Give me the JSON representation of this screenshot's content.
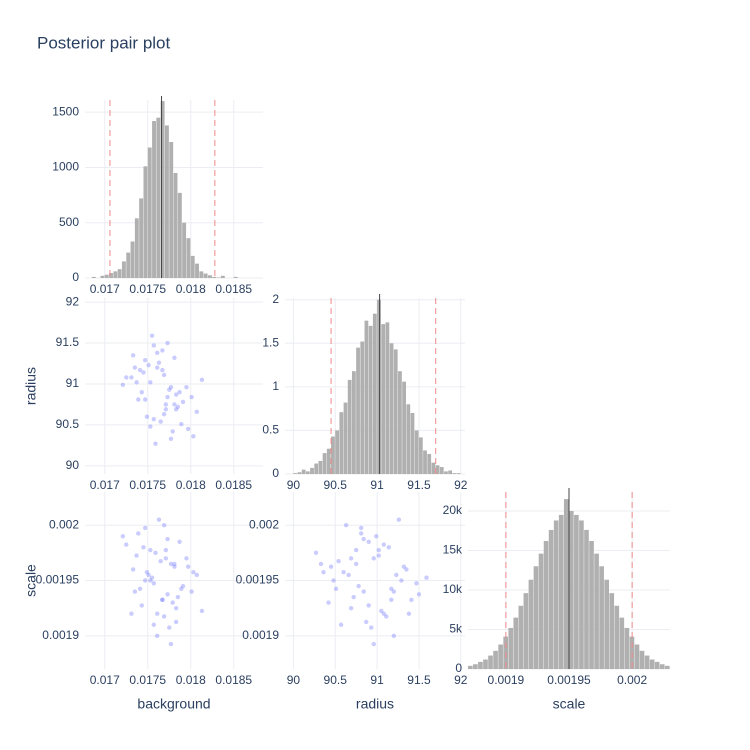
{
  "chart_data": {
    "type": "pair",
    "title": "Posterior pair plot",
    "hist_color": "#b0b0b0",
    "median_color": "#444444",
    "quantile_color": "#ef8a8a",
    "point_color": "#636efa",
    "grid": true,
    "variables": [
      {
        "name": "background",
        "xlim": [
          0.01677,
          0.01884
        ],
        "xticks": [
          0.017,
          0.0175,
          0.018,
          0.0185
        ],
        "hist_ylim": [
          0,
          1610
        ],
        "hist_yticks": [
          0,
          500,
          1000,
          1500
        ],
        "bins": [
          0.0168,
          0.01685,
          0.0169,
          0.01695,
          0.017,
          0.01705,
          0.0171,
          0.01715,
          0.0172,
          0.01725,
          0.0173,
          0.01735,
          0.0174,
          0.01745,
          0.0175,
          0.01755,
          0.0176,
          0.01765,
          0.0177,
          0.01775,
          0.0178,
          0.01785,
          0.0179,
          0.01795,
          0.018,
          0.01805,
          0.0181,
          0.01815,
          0.0182,
          0.01825,
          0.0183,
          0.01835,
          0.0184,
          0.01845,
          0.0185,
          0.01855,
          0.0186,
          0.01865,
          0.0187,
          0.01875,
          0.0188
        ],
        "counts": [
          0,
          10,
          0,
          20,
          30,
          45,
          60,
          80,
          150,
          230,
          330,
          540,
          720,
          1010,
          1180,
          1420,
          1450,
          1600,
          1380,
          1230,
          950,
          770,
          500,
          360,
          200,
          130,
          60,
          40,
          25,
          10,
          5,
          20,
          0,
          0,
          10,
          0,
          0,
          0,
          0,
          0
        ],
        "median": 0.01766,
        "quantiles": [
          0.01706,
          0.01828
        ],
        "samples": [
          0.01771,
          0.01741,
          0.01781,
          0.01757,
          0.01795,
          0.01747,
          0.01767,
          0.01807,
          0.01731,
          0.01777,
          0.01761,
          0.01787,
          0.01753,
          0.01773,
          0.01737,
          0.01783,
          0.01763,
          0.01801,
          0.01749,
          0.01769,
          0.01721,
          0.01779,
          0.01755,
          0.01791,
          0.01745,
          0.01765,
          0.01775,
          0.01733,
          0.01785,
          0.01759,
          0.01813,
          0.01751,
          0.01769,
          0.01743,
          0.01797,
          0.01757,
          0.01783,
          0.01725,
          0.01771,
          0.01789,
          0.01747,
          0.01777,
          0.01739,
          0.01767,
          0.01803,
          0.01753,
          0.01761,
          0.01781,
          0.01735,
          0.01773
        ]
      },
      {
        "name": "radius",
        "xlim": [
          89.9,
          92.05
        ],
        "xticks": [
          90,
          90.5,
          91,
          91.5,
          92
        ],
        "hist_ylim": [
          0,
          2.02
        ],
        "hist_yticks": [
          0,
          0.5,
          1,
          1.5,
          2
        ],
        "bins": [
          90,
          90.05,
          90.1,
          90.15,
          90.2,
          90.25,
          90.3,
          90.35,
          90.4,
          90.45,
          90.5,
          90.55,
          90.6,
          90.65,
          90.7,
          90.75,
          90.8,
          90.85,
          90.9,
          90.95,
          91,
          91.05,
          91.1,
          91.15,
          91.2,
          91.25,
          91.3,
          91.35,
          91.4,
          91.45,
          91.5,
          91.55,
          91.6,
          91.65,
          91.7,
          91.75,
          91.8,
          91.85,
          91.9,
          91.95,
          92
        ],
        "counts": [
          0.01,
          0.02,
          0.05,
          0.03,
          0.07,
          0.12,
          0.15,
          0.24,
          0.29,
          0.43,
          0.5,
          0.71,
          0.82,
          1.08,
          1.18,
          1.45,
          1.52,
          1.76,
          1.7,
          1.84,
          2.0,
          1.72,
          1.74,
          1.5,
          1.43,
          1.18,
          1.06,
          0.8,
          0.7,
          0.5,
          0.42,
          0.27,
          0.23,
          0.13,
          0.1,
          0.08,
          0.03,
          0.04,
          0.01,
          0.01
        ],
        "median": 91.03,
        "quantiles": [
          90.45,
          91.7
        ],
        "samples": [
          90.75,
          91.17,
          91.32,
          90.57,
          90.96,
          90.81,
          91.41,
          90.66,
          91.08,
          90.33,
          91.2,
          90.9,
          90.48,
          91.5,
          91.02,
          90.69,
          91.26,
          90.84,
          90.6,
          91.11,
          90.99,
          90.42,
          91.59,
          90.78,
          91.14,
          90.54,
          90.93,
          91.35,
          90.72,
          90.27,
          91.05,
          91.23,
          90.63,
          90.9,
          90.45,
          91.47,
          90.87,
          91.08,
          90.69,
          90.51,
          91.29,
          90.96,
          90.81,
          91.17,
          90.36,
          91.02,
          91.38,
          90.75,
          91.2,
          90.84
        ]
      },
      {
        "name": "scale",
        "xlim": [
          0.00187,
          0.00203
        ],
        "xticks": [
          0.0019,
          0.00195,
          0.002
        ],
        "hist_ylim": [
          0,
          22400
        ],
        "hist_yticks": [
          0,
          {
            "value": 5000,
            "label": "5k"
          },
          {
            "value": 10000,
            "label": "10k"
          },
          {
            "value": 15000,
            "label": "15k"
          },
          {
            "value": 20000,
            "label": "20k"
          }
        ],
        "bins": [
          0.00187,
          0.001874,
          0.001878,
          0.001882,
          0.001886,
          0.00189,
          0.001894,
          0.001898,
          0.001902,
          0.001906,
          0.00191,
          0.001914,
          0.001918,
          0.001922,
          0.001926,
          0.00193,
          0.001934,
          0.001938,
          0.001942,
          0.001946,
          0.00195,
          0.001954,
          0.001958,
          0.001962,
          0.001966,
          0.00197,
          0.001974,
          0.001978,
          0.001982,
          0.001986,
          0.00199,
          0.001994,
          0.001998,
          0.002002,
          0.002006,
          0.00201,
          0.002014,
          0.002018,
          0.002022,
          0.002026,
          0.00203
        ],
        "counts": [
          400,
          600,
          900,
          1200,
          1700,
          2300,
          3100,
          4100,
          5200,
          6500,
          8000,
          9600,
          11300,
          13000,
          14600,
          16200,
          17600,
          18800,
          19500,
          21500,
          20000,
          19500,
          18800,
          17600,
          16200,
          14600,
          13000,
          11300,
          9600,
          8000,
          6500,
          5200,
          4100,
          3100,
          2300,
          1700,
          1200,
          900,
          600,
          400
        ],
        "median": 0.00195,
        "quantiles": [
          0.0019,
          0.002
        ],
        "samples": [
          0.0019775,
          0.0019425,
          0.0019625,
          0.00191,
          0.00197,
          0.0019975,
          0.0019325,
          0.001955,
          0.00192,
          0.001965,
          0.0019,
          0.001985,
          0.00195,
          0.0019375,
          0.0019725,
          0.001925,
          0.002005,
          0.00194,
          0.0019575,
          0.0019175,
          0.00199,
          0.00193,
          0.0019525,
          0.001945,
          0.00198,
          0.0019675,
          0.0019075,
          0.00196,
          0.001935,
          0.001975,
          0.0019225,
          0.001955,
          0.002,
          0.0019275,
          0.0019625,
          0.0019475,
          0.0019125,
          0.0019825,
          0.00197,
          0.0019425,
          0.00195,
          0.0018925,
          0.0019925,
          0.0019325,
          0.0019575,
          0.0019775,
          0.00192,
          0.001965,
          0.00194,
          0.0019875
        ]
      }
    ]
  }
}
